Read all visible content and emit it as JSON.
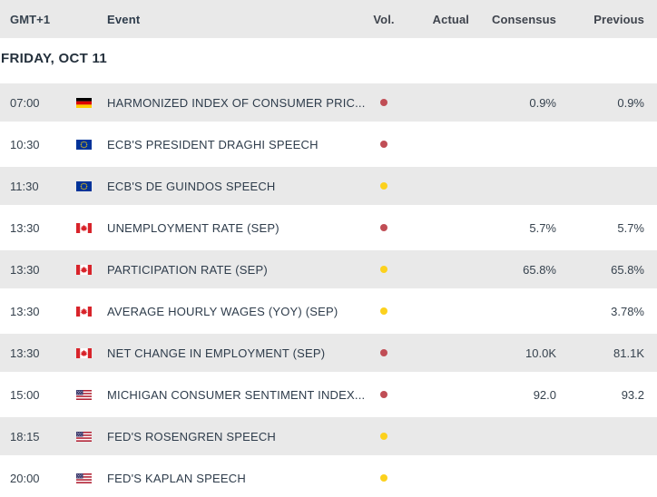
{
  "header": {
    "columns": [
      {
        "key": "time",
        "label": "GMT+1"
      },
      {
        "key": "event",
        "label": "Event"
      },
      {
        "key": "vol",
        "label": "Vol."
      },
      {
        "key": "actual",
        "label": "Actual"
      },
      {
        "key": "consensus",
        "label": "Consensus"
      },
      {
        "key": "previous",
        "label": "Previous"
      }
    ]
  },
  "date_header": "FRIDAY, OCT 11",
  "colors": {
    "row_shade": "#e9e9e9",
    "header_background": "#e9e9e9",
    "high_volatility_dot": "#c04d55",
    "medium_volatility_dot": "#fcd11d",
    "germany_flag": [
      "#000000",
      "#dd0000",
      "#ffce00"
    ],
    "eu_flag": [
      "#003399",
      "#ffcc00"
    ],
    "canada_flag": [
      "#d8232a",
      "#ffffff"
    ],
    "us_flag": [
      "#b22234",
      "#ffffff",
      "#3c3b6e"
    ]
  },
  "rows": [
    {
      "time": "07:00",
      "country": "germany",
      "event": "HARMONIZED INDEX OF CONSUMER PRIC...",
      "volatility": "high",
      "actual": "",
      "consensus": "0.9%",
      "previous": "0.9%"
    },
    {
      "time": "10:30",
      "country": "eu",
      "event": "ECB'S PRESIDENT DRAGHI SPEECH",
      "volatility": "high",
      "actual": "",
      "consensus": "",
      "previous": ""
    },
    {
      "time": "11:30",
      "country": "eu",
      "event": "ECB'S DE GUINDOS SPEECH",
      "volatility": "medium",
      "actual": "",
      "consensus": "",
      "previous": ""
    },
    {
      "time": "13:30",
      "country": "canada",
      "event": "UNEMPLOYMENT RATE (SEP)",
      "volatility": "high",
      "actual": "",
      "consensus": "5.7%",
      "previous": "5.7%"
    },
    {
      "time": "13:30",
      "country": "canada",
      "event": "PARTICIPATION RATE (SEP)",
      "volatility": "medium",
      "actual": "",
      "consensus": "65.8%",
      "previous": "65.8%"
    },
    {
      "time": "13:30",
      "country": "canada",
      "event": "AVERAGE HOURLY WAGES (YOY) (SEP)",
      "volatility": "medium",
      "actual": "",
      "consensus": "",
      "previous": "3.78%"
    },
    {
      "time": "13:30",
      "country": "canada",
      "event": "NET CHANGE IN EMPLOYMENT (SEP)",
      "volatility": "high",
      "actual": "",
      "consensus": "10.0K",
      "previous": "81.1K"
    },
    {
      "time": "15:00",
      "country": "us",
      "event": "MICHIGAN CONSUMER SENTIMENT INDEX...",
      "volatility": "high",
      "actual": "",
      "consensus": "92.0",
      "previous": "93.2"
    },
    {
      "time": "18:15",
      "country": "us",
      "event": "FED'S ROSENGREN SPEECH",
      "volatility": "medium",
      "actual": "",
      "consensus": "",
      "previous": ""
    },
    {
      "time": "20:00",
      "country": "us",
      "event": "FED'S KAPLAN SPEECH",
      "volatility": "medium",
      "actual": "",
      "consensus": "",
      "previous": ""
    }
  ]
}
